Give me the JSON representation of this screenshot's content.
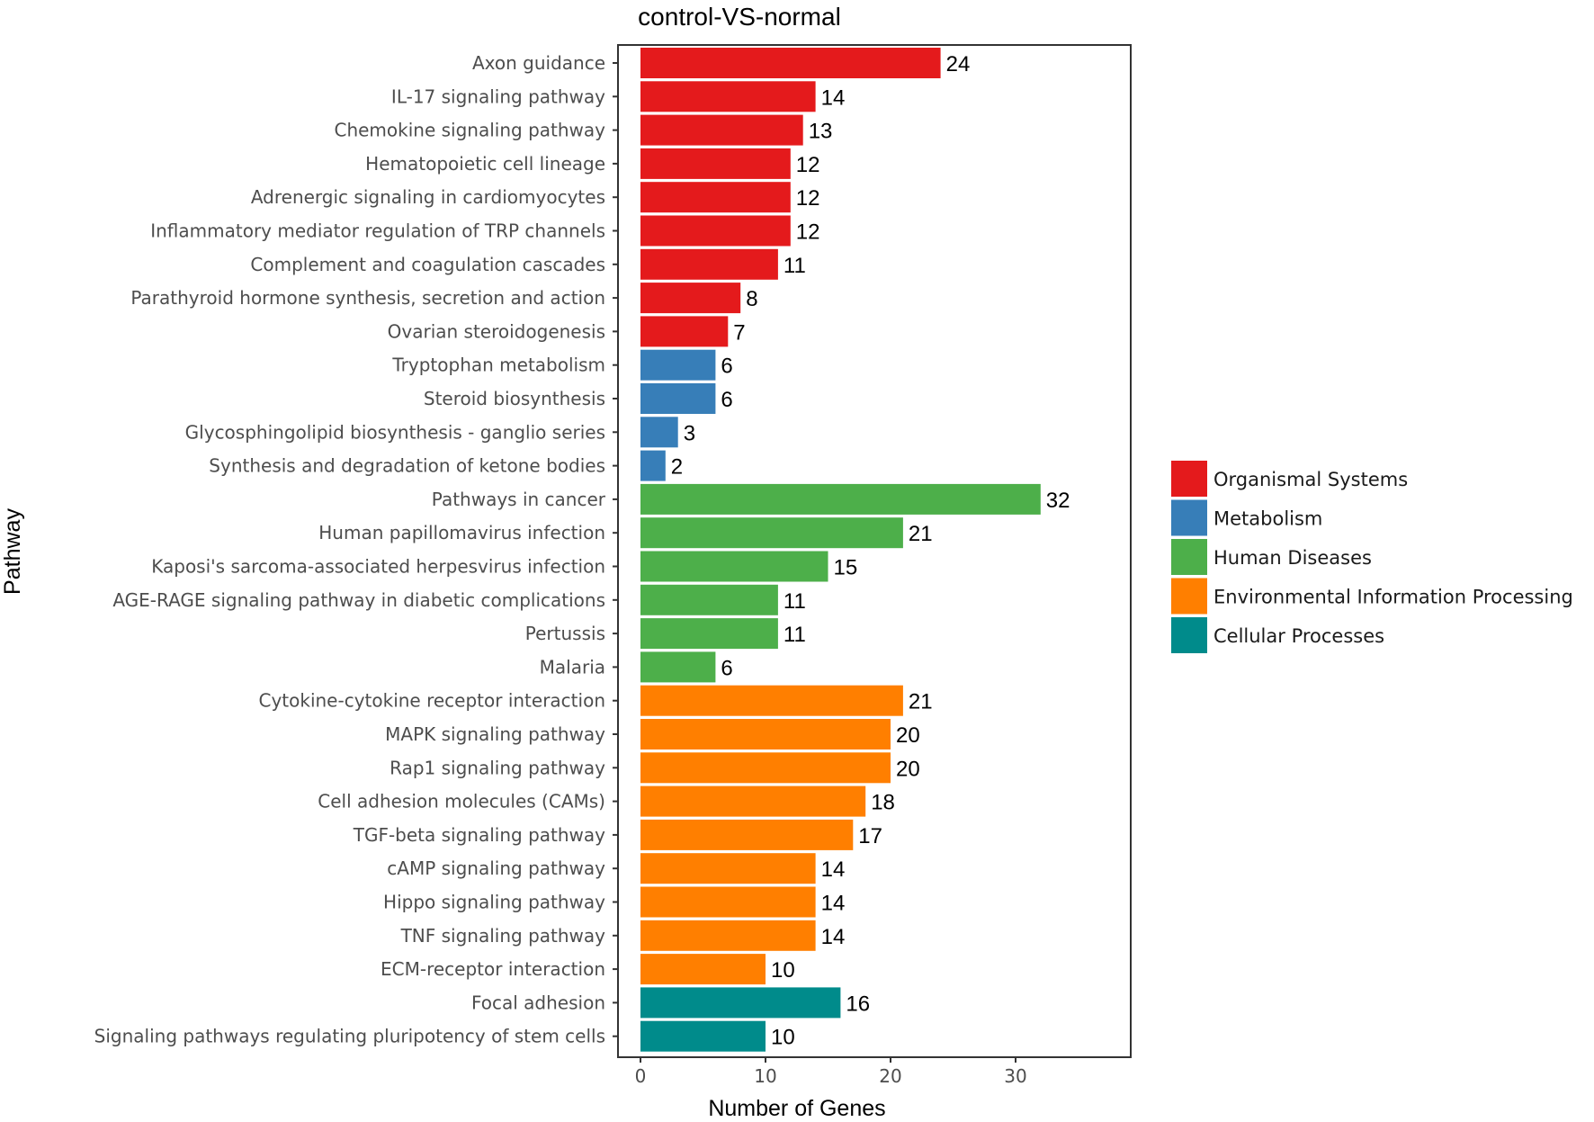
{
  "chart_data": {
    "type": "bar",
    "orientation": "horizontal",
    "title": "control-VS-normal",
    "xlabel": "Number of Genes",
    "ylabel": "Pathway",
    "xlim": [
      0,
      38
    ],
    "xticks": [
      0,
      10,
      20,
      30
    ],
    "grid": false,
    "legend_position": "right",
    "legend": [
      {
        "name": "Organismal Systems",
        "color": "#e41a1c"
      },
      {
        "name": "Metabolism",
        "color": "#377eb8"
      },
      {
        "name": "Human Diseases",
        "color": "#4daf4a"
      },
      {
        "name": "Environmental Information Processing",
        "color": "#ff7f00"
      },
      {
        "name": "Cellular Processes",
        "color": "#008b8b"
      }
    ],
    "bars": [
      {
        "label": "Axon guidance",
        "value": 24,
        "category": 0
      },
      {
        "label": "IL-17 signaling pathway",
        "value": 14,
        "category": 0
      },
      {
        "label": "Chemokine signaling pathway",
        "value": 13,
        "category": 0
      },
      {
        "label": "Hematopoietic cell lineage",
        "value": 12,
        "category": 0
      },
      {
        "label": "Adrenergic signaling in cardiomyocytes",
        "value": 12,
        "category": 0
      },
      {
        "label": "Inflammatory mediator regulation of TRP channels",
        "value": 12,
        "category": 0
      },
      {
        "label": "Complement and coagulation cascades",
        "value": 11,
        "category": 0
      },
      {
        "label": "Parathyroid hormone synthesis, secretion and action",
        "value": 8,
        "category": 0
      },
      {
        "label": "Ovarian steroidogenesis",
        "value": 7,
        "category": 0
      },
      {
        "label": "Tryptophan metabolism",
        "value": 6,
        "category": 1
      },
      {
        "label": "Steroid biosynthesis",
        "value": 6,
        "category": 1
      },
      {
        "label": "Glycosphingolipid biosynthesis - ganglio series",
        "value": 3,
        "category": 1
      },
      {
        "label": "Synthesis and degradation of ketone bodies",
        "value": 2,
        "category": 1
      },
      {
        "label": "Pathways in cancer",
        "value": 32,
        "category": 2
      },
      {
        "label": "Human papillomavirus infection",
        "value": 21,
        "category": 2
      },
      {
        "label": "Kaposi's sarcoma-associated herpesvirus infection",
        "value": 15,
        "category": 2
      },
      {
        "label": "AGE-RAGE signaling pathway in diabetic complications",
        "value": 11,
        "category": 2
      },
      {
        "label": "Pertussis",
        "value": 11,
        "category": 2
      },
      {
        "label": "Malaria",
        "value": 6,
        "category": 2
      },
      {
        "label": "Cytokine-cytokine receptor interaction",
        "value": 21,
        "category": 3
      },
      {
        "label": "MAPK signaling pathway",
        "value": 20,
        "category": 3
      },
      {
        "label": "Rap1 signaling pathway",
        "value": 20,
        "category": 3
      },
      {
        "label": "Cell adhesion molecules (CAMs)",
        "value": 18,
        "category": 3
      },
      {
        "label": "TGF-beta signaling pathway",
        "value": 17,
        "category": 3
      },
      {
        "label": "cAMP signaling pathway",
        "value": 14,
        "category": 3
      },
      {
        "label": "Hippo signaling pathway",
        "value": 14,
        "category": 3
      },
      {
        "label": "TNF signaling pathway",
        "value": 14,
        "category": 3
      },
      {
        "label": "ECM-receptor interaction",
        "value": 10,
        "category": 3
      },
      {
        "label": "Focal adhesion",
        "value": 16,
        "category": 4
      },
      {
        "label": "Signaling pathways regulating pluripotency of stem cells",
        "value": 10,
        "category": 4
      }
    ]
  }
}
